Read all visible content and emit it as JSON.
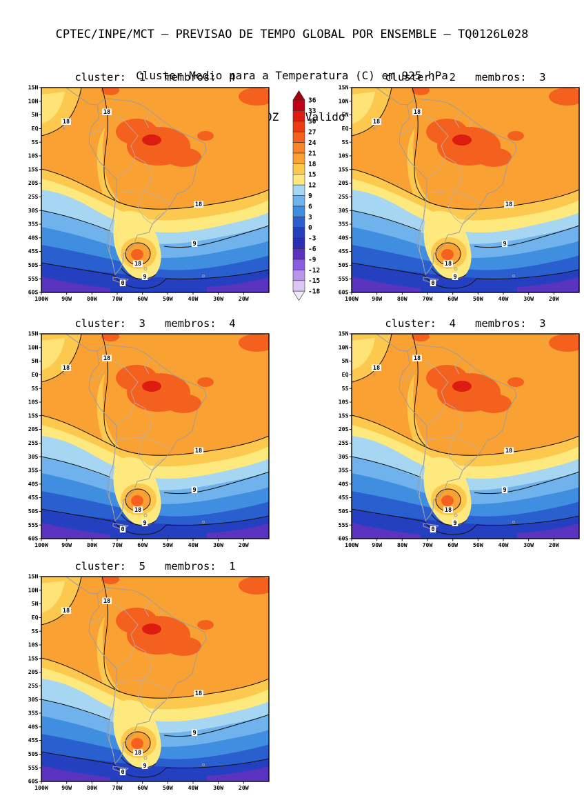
{
  "header": {
    "line1": "CPTEC/INPE/MCT — PREVISAO DE TEMPO GLOBAL POR ENSEMBLE — TQ0126L028",
    "line2": "Cluster Medio para a Temperatura (C) em 925 hPa",
    "line3": "Previsao de: 2020120700Z    Valido para: 2020120712Z"
  },
  "panels": [
    {
      "title": "cluster:  1   membros:  4",
      "cluster": "1",
      "membros": "4"
    },
    {
      "title": "cluster:  2   membros:  3",
      "cluster": "2",
      "membros": "3"
    },
    {
      "title": "cluster:  3   membros:  4",
      "cluster": "3",
      "membros": "4"
    },
    {
      "title": "cluster:  4   membros:  3",
      "cluster": "4",
      "membros": "3"
    },
    {
      "title": "cluster:  5   membros:  1",
      "cluster": "5",
      "membros": "1"
    }
  ],
  "axes": {
    "lat_labels": [
      "15N",
      "10N",
      "5N",
      "EQ",
      "5S",
      "10S",
      "15S",
      "20S",
      "25S",
      "30S",
      "35S",
      "40S",
      "45S",
      "50S",
      "55S",
      "60S"
    ],
    "lon_labels": [
      "100W",
      "90W",
      "80W",
      "70W",
      "60W",
      "50W",
      "40W",
      "30W",
      "20W"
    ]
  },
  "colorbar": {
    "tick_labels": [
      "36",
      "33",
      "30",
      "27",
      "24",
      "21",
      "18",
      "15",
      "12",
      "9",
      "6",
      "3",
      "0",
      "-3",
      "-6",
      "-9",
      "-12",
      "-15",
      "-18"
    ],
    "colors_top_to_bottom": [
      "#9E0010",
      "#C00016",
      "#DC1C10",
      "#EE3B14",
      "#F4611E",
      "#F9852B",
      "#F9A233",
      "#FCC94E",
      "#FEE97E",
      "#A6D6F2",
      "#6FB2EC",
      "#3F8EE0",
      "#2A5FD0",
      "#2440C0",
      "#2C2EB4",
      "#5A33BE",
      "#8C5CE0",
      "#BB94EC",
      "#DCC6F6",
      "#F2EAFC"
    ]
  },
  "contour_labels": {
    "c18": "18",
    "c9": "9",
    "c0": "0"
  },
  "colors": {
    "background": "#FFFFFF",
    "coastline": "#9C9C9C",
    "borders": "#B4B4B4",
    "contour": "#111111",
    "frame": "#000000",
    "text": "#000000"
  },
  "chart_data": {
    "type": "heatmap",
    "suptitle": "CPTEC/INPE/MCT — PREVISAO DE TEMPO GLOBAL POR ENSEMBLE — TQ0126L028",
    "title": "Cluster Medio para a Temperatura (C) em 925 hPa",
    "init_time": "2020120700Z",
    "valid_time": "2020120712Z",
    "model": "TQ0126L028",
    "variable": "Temperatura",
    "units": "C",
    "pressure_level": "925 hPa",
    "n_panels": 5,
    "panels": [
      {
        "cluster": 1,
        "membros": 4
      },
      {
        "cluster": 2,
        "membros": 3
      },
      {
        "cluster": 3,
        "membros": 4
      },
      {
        "cluster": 4,
        "membros": 3
      },
      {
        "cluster": 5,
        "membros": 1
      }
    ],
    "x_axis": {
      "label": "",
      "ticks": [
        "100W",
        "90W",
        "80W",
        "70W",
        "60W",
        "50W",
        "40W",
        "30W",
        "20W"
      ]
    },
    "y_axis": {
      "label": "",
      "ticks": [
        "15N",
        "10N",
        "5N",
        "EQ",
        "5S",
        "10S",
        "15S",
        "20S",
        "25S",
        "30S",
        "35S",
        "40S",
        "45S",
        "50S",
        "55S",
        "60S"
      ]
    },
    "contour_levels_c": [
      -18,
      -15,
      -12,
      -9,
      -6,
      -3,
      0,
      3,
      6,
      9,
      12,
      15,
      18,
      21,
      24,
      27,
      30,
      33,
      36
    ],
    "labeled_contours_c": [
      0,
      9,
      18
    ],
    "legend_position": "vertical colorbar between top two panels",
    "grid": false
  }
}
